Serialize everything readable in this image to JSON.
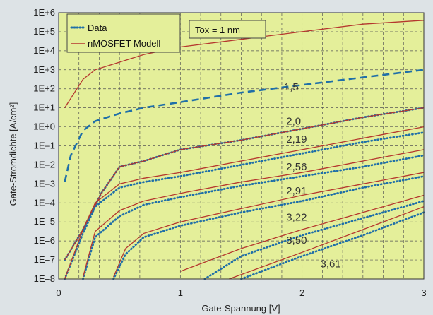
{
  "chart_data": {
    "type": "line",
    "title": "",
    "xlabel": "Gate-Spannung [V]",
    "ylabel": "Gate-Stromdichte [A/cm²]",
    "xlim": [
      0,
      3
    ],
    "ylim_log10": [
      -8,
      6
    ],
    "y_scale": "log",
    "grid": true,
    "x_ticks": [
      "0",
      "1",
      "2",
      "3"
    ],
    "y_ticks": [
      "1E–8",
      "1E–7",
      "1E–6",
      "1E–5",
      "1E–4",
      "1E–3",
      "1E–2",
      "1E–1",
      "1E+0",
      "1E+1",
      "1E+2",
      "1E+3",
      "1E+4",
      "1E+5",
      "1E+6"
    ],
    "legend": {
      "position": "top-left",
      "entries": [
        {
          "label": "Data",
          "style": "dotted",
          "color": "#1f6fa8"
        },
        {
          "label": "nMOSFET-Modell",
          "style": "solid",
          "color": "#b5372e"
        }
      ]
    },
    "annotation": "Tox = 1 nm",
    "background_color": "#e4ef9a",
    "model_color": "#b5372e",
    "data_color": "#1f6fa8",
    "series": [
      {
        "label": "1,5",
        "model": [
          [
            0.05,
            1.0
          ],
          [
            0.1,
            1.5
          ],
          [
            0.2,
            2.5
          ],
          [
            0.3,
            3.0
          ],
          [
            0.5,
            3.4
          ],
          [
            0.7,
            3.8
          ],
          [
            1.0,
            4.2
          ],
          [
            1.5,
            4.6
          ],
          [
            2.0,
            5.0
          ],
          [
            2.5,
            5.4
          ],
          [
            3.0,
            5.6
          ]
        ],
        "data": []
      },
      {
        "label": "2,0",
        "model": [
          [
            0.05,
            -2.9
          ],
          [
            0.1,
            -1.5
          ],
          [
            0.2,
            -0.2
          ],
          [
            0.3,
            0.3
          ],
          [
            0.5,
            0.7
          ],
          [
            0.7,
            1.0
          ],
          [
            1.0,
            1.3
          ],
          [
            1.5,
            1.8
          ],
          [
            2.0,
            2.2
          ],
          [
            2.5,
            2.6
          ],
          [
            3.0,
            3.0
          ]
        ],
        "data": []
      },
      {
        "label": "2,19",
        "model": [
          [
            0.05,
            -7.0
          ],
          [
            0.2,
            -5.4
          ],
          [
            0.35,
            -3.5
          ],
          [
            0.5,
            -2.1
          ],
          [
            0.7,
            -1.8
          ],
          [
            1.0,
            -1.2
          ],
          [
            1.5,
            -0.7
          ],
          [
            2.0,
            -0.1
          ],
          [
            2.5,
            0.5
          ],
          [
            3.0,
            1.0
          ]
        ],
        "data": [
          [
            0.05,
            -7.0
          ],
          [
            0.2,
            -5.4
          ],
          [
            0.35,
            -3.5
          ],
          [
            0.5,
            -2.1
          ],
          [
            0.7,
            -1.8
          ],
          [
            1.0,
            -1.2
          ],
          [
            1.5,
            -0.7
          ],
          [
            2.0,
            -0.1
          ],
          [
            2.5,
            0.5
          ],
          [
            3.0,
            1.0
          ]
        ]
      },
      {
        "label": "2,56",
        "model": [
          [
            0.05,
            -8.0
          ],
          [
            0.2,
            -5.4
          ],
          [
            0.3,
            -4.0
          ],
          [
            0.5,
            -3.0
          ],
          [
            0.7,
            -2.7
          ],
          [
            1.0,
            -2.4
          ],
          [
            1.5,
            -1.8
          ],
          [
            2.0,
            -1.2
          ],
          [
            2.5,
            -0.6
          ],
          [
            3.0,
            0.0
          ]
        ],
        "data": [
          [
            0.05,
            -8.0
          ],
          [
            0.2,
            -5.6
          ],
          [
            0.3,
            -4.2
          ],
          [
            0.5,
            -3.2
          ],
          [
            0.7,
            -2.9
          ],
          [
            1.0,
            -2.6
          ],
          [
            1.5,
            -2.0
          ],
          [
            2.0,
            -1.4
          ],
          [
            2.5,
            -0.8
          ],
          [
            3.0,
            -0.3
          ]
        ]
      },
      {
        "label": "2,91",
        "model": [
          [
            0.2,
            -7.9
          ],
          [
            0.3,
            -5.5
          ],
          [
            0.5,
            -4.4
          ],
          [
            0.7,
            -3.9
          ],
          [
            1.0,
            -3.5
          ],
          [
            1.5,
            -2.9
          ],
          [
            2.0,
            -2.4
          ],
          [
            2.5,
            -1.8
          ],
          [
            3.0,
            -1.2
          ]
        ],
        "data": [
          [
            0.2,
            -8.0
          ],
          [
            0.3,
            -5.8
          ],
          [
            0.5,
            -4.7
          ],
          [
            0.7,
            -4.1
          ],
          [
            1.0,
            -3.7
          ],
          [
            1.5,
            -3.1
          ],
          [
            2.0,
            -2.6
          ],
          [
            2.5,
            -2.1
          ],
          [
            3.0,
            -1.5
          ]
        ]
      },
      {
        "label": "3,22",
        "model": [
          [
            0.45,
            -7.9
          ],
          [
            0.55,
            -6.4
          ],
          [
            0.7,
            -5.6
          ],
          [
            1.0,
            -5.0
          ],
          [
            1.5,
            -4.3
          ],
          [
            2.0,
            -3.6
          ],
          [
            2.5,
            -3.0
          ],
          [
            3.0,
            -2.4
          ]
        ],
        "data": [
          [
            0.45,
            -8.0
          ],
          [
            0.55,
            -6.7
          ],
          [
            0.7,
            -5.8
          ],
          [
            1.0,
            -5.2
          ],
          [
            1.5,
            -4.5
          ],
          [
            2.0,
            -3.9
          ],
          [
            2.5,
            -3.2
          ],
          [
            3.0,
            -2.6
          ]
        ]
      },
      {
        "label": "3,50",
        "model": [
          [
            1.0,
            -7.6
          ],
          [
            1.5,
            -6.4
          ],
          [
            2.0,
            -5.4
          ],
          [
            2.5,
            -4.5
          ],
          [
            3.0,
            -3.6
          ]
        ],
        "data": [
          [
            1.2,
            -8.0
          ],
          [
            1.5,
            -6.8
          ],
          [
            2.0,
            -5.7
          ],
          [
            2.5,
            -4.8
          ],
          [
            3.0,
            -3.9
          ]
        ]
      },
      {
        "label": "3,61",
        "model": [
          [
            1.4,
            -8.0
          ],
          [
            2.0,
            -6.6
          ],
          [
            2.5,
            -5.4
          ],
          [
            3.0,
            -4.2
          ]
        ],
        "data": [
          [
            1.5,
            -8.0
          ],
          [
            2.0,
            -6.8
          ],
          [
            2.5,
            -5.7
          ],
          [
            3.0,
            -4.5
          ]
        ]
      }
    ],
    "curve_label_positions": [
      {
        "label": "1,5",
        "x": 1.85,
        "y": 2.1
      },
      {
        "label": "2,0",
        "x": 1.87,
        "y": 0.3
      },
      {
        "label": "2,19",
        "x": 1.87,
        "y": -0.65
      },
      {
        "label": "2,56",
        "x": 1.87,
        "y": -2.1
      },
      {
        "label": "2,91",
        "x": 1.87,
        "y": -3.35
      },
      {
        "label": "3,22",
        "x": 1.87,
        "y": -4.75
      },
      {
        "label": "3,50",
        "x": 1.87,
        "y": -5.95
      },
      {
        "label": "3,61",
        "x": 2.15,
        "y": -7.2
      }
    ]
  }
}
